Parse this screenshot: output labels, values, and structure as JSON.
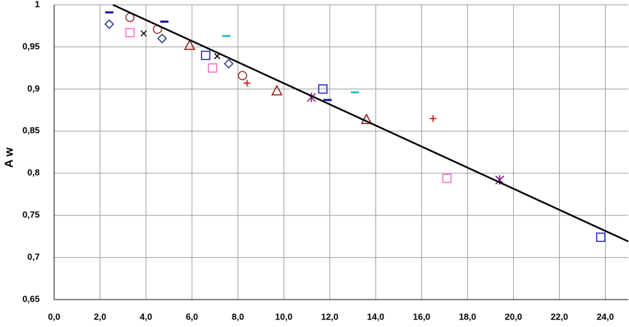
{
  "chart_data": {
    "type": "scatter",
    "y_label": "A w",
    "xlim": [
      0,
      25
    ],
    "ylim": [
      0.65,
      1
    ],
    "xticks": [
      {
        "value": 0,
        "label": "0,0"
      },
      {
        "value": 2,
        "label": "2,0"
      },
      {
        "value": 4,
        "label": "4,0"
      },
      {
        "value": 6,
        "label": "6,0"
      },
      {
        "value": 8,
        "label": "8,0"
      },
      {
        "value": 10,
        "label": "10,0"
      },
      {
        "value": 12,
        "label": "12,0"
      },
      {
        "value": 14,
        "label": "14,0"
      },
      {
        "value": 16,
        "label": "16,0"
      },
      {
        "value": 18,
        "label": "18,0"
      },
      {
        "value": 20,
        "label": "20,0"
      },
      {
        "value": 22,
        "label": "22,0"
      },
      {
        "value": 24,
        "label": "24,0"
      }
    ],
    "yticks": [
      {
        "value": 0.65,
        "label": "0,65"
      },
      {
        "value": 0.7,
        "label": "0,7"
      },
      {
        "value": 0.75,
        "label": "0,75"
      },
      {
        "value": 0.8,
        "label": "0,8"
      },
      {
        "value": 0.85,
        "label": "0,85"
      },
      {
        "value": 0.9,
        "label": "0,9"
      },
      {
        "value": 0.95,
        "label": "0,95"
      },
      1
    ],
    "grid": true,
    "series": [
      {
        "marker": "diamond",
        "color": "#1a2f8a",
        "x": [
          2.4,
          4.7,
          7.6
        ],
        "values": [
          0.977,
          0.96,
          0.93
        ]
      },
      {
        "marker": "dash",
        "color": "#1010a0",
        "x": [
          2.4,
          4.8,
          11.9
        ],
        "values": [
          0.991,
          0.98,
          0.887
        ]
      },
      {
        "marker": "circle",
        "color": "#993333",
        "x": [
          3.3,
          4.5,
          8.2
        ],
        "values": [
          0.985,
          0.971,
          0.916
        ]
      },
      {
        "marker": "x",
        "color": "#000000",
        "x": [
          3.9,
          7.1
        ],
        "values": [
          0.966,
          0.939
        ]
      },
      {
        "marker": "square",
        "color": "#ff66cc",
        "x": [
          3.3,
          6.9,
          17.1
        ],
        "values": [
          0.967,
          0.925,
          0.794
        ]
      },
      {
        "marker": "square",
        "color": "#1c1cc0",
        "x": [
          6.6,
          11.7,
          23.8
        ],
        "values": [
          0.94,
          0.9,
          0.724
        ]
      },
      {
        "marker": "triangle",
        "color": "#8b1010",
        "x": [
          5.9,
          9.7,
          13.6
        ],
        "values": [
          0.952,
          0.898,
          0.864
        ]
      },
      {
        "marker": "dash",
        "color": "#33bbdd",
        "x": [
          7.5,
          13.1
        ],
        "values": [
          0.963,
          0.896
        ]
      },
      {
        "marker": "plus",
        "color": "#cc0000",
        "x": [
          8.4,
          16.5
        ],
        "values": [
          0.907,
          0.865
        ]
      },
      {
        "marker": "star",
        "color": "#800080",
        "x": [
          11.2,
          19.4
        ],
        "values": [
          0.89,
          0.792
        ]
      }
    ],
    "trendline": {
      "color": "#000000",
      "x": [
        2.56,
        25
      ],
      "values": [
        1,
        0.719
      ]
    }
  }
}
